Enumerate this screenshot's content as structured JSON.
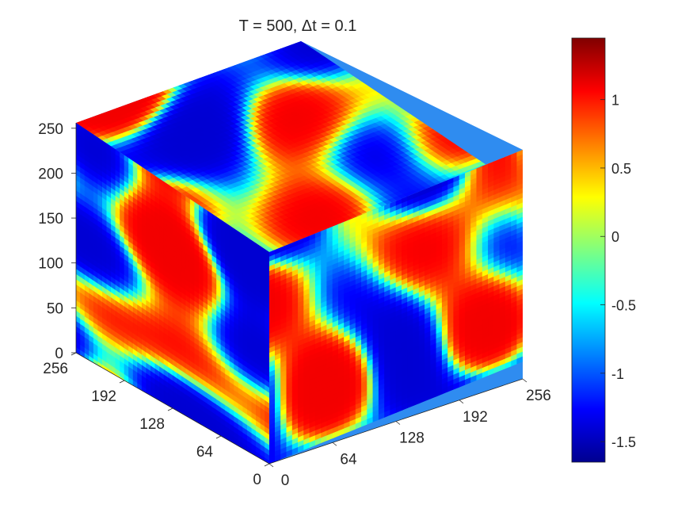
{
  "chart_data": {
    "type": "heatmap",
    "title": "T = 500,  Δt = 0.1",
    "colormap": "jet",
    "z_axis": {
      "ticks": [
        "0",
        "50",
        "100",
        "150",
        "200",
        "250"
      ]
    },
    "y_axis": {
      "ticks": [
        "0",
        "64",
        "128",
        "192",
        "256"
      ]
    },
    "x_axis": {
      "ticks": [
        "0",
        "64",
        "128",
        "192",
        "256"
      ]
    },
    "colorbar": {
      "range": [
        -1.65,
        1.45
      ],
      "ticks": [
        "-1.5",
        "-1",
        "-0.5",
        "0",
        "0.5",
        "1"
      ],
      "tick_values": [
        -1.5,
        -1,
        -0.5,
        0,
        0.5,
        1
      ]
    },
    "faces": [
      "top",
      "left",
      "right"
    ],
    "pattern": "labyrinthine stripes, values saturating near -1 (blue) and +1 (red)"
  },
  "colors": {
    "axis": "#262626",
    "background": "#ffffff"
  }
}
